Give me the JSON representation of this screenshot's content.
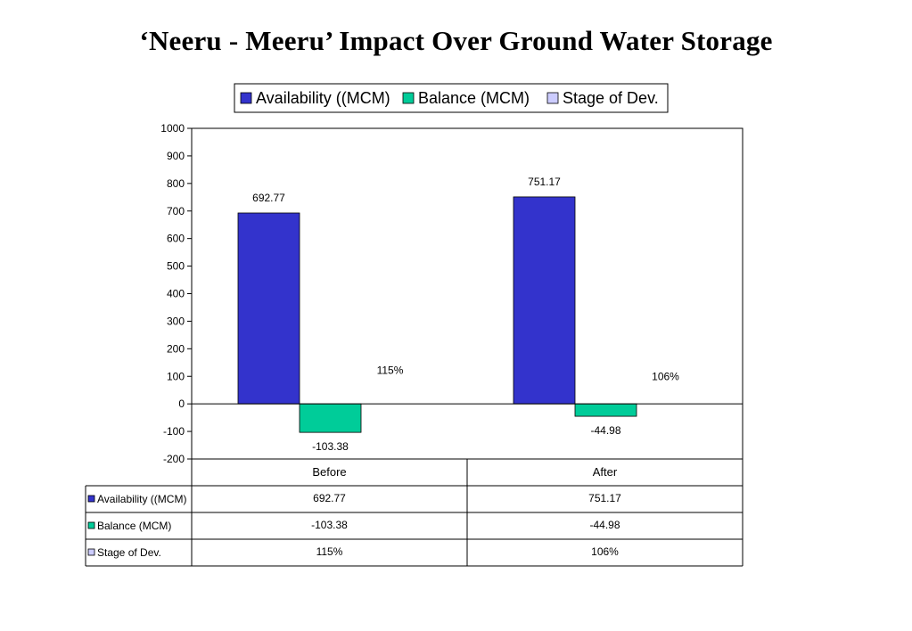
{
  "title": "‘Neeru - Meeru’ Impact Over Ground Water Storage",
  "colors": {
    "availability": "#3333cc",
    "balance": "#00cc99",
    "stage": "#ccccff"
  },
  "chart_data": {
    "type": "bar",
    "categories": [
      "Before",
      "After"
    ],
    "series": [
      {
        "name": "Availability ((MCM)",
        "values": [
          692.77,
          751.17
        ],
        "labels": [
          "692.77",
          "751.17"
        ]
      },
      {
        "name": "Balance (MCM)",
        "values": [
          -103.38,
          -44.98
        ],
        "labels": [
          "-103.38",
          "-44.98"
        ]
      },
      {
        "name": "Stage of Dev.",
        "values": [
          115,
          106
        ],
        "labels": [
          "115%",
          "106%"
        ]
      }
    ],
    "yticks": [
      1000,
      900,
      800,
      700,
      600,
      500,
      400,
      300,
      200,
      100,
      0,
      -100,
      -200
    ],
    "ylim": [
      -200,
      1000
    ],
    "legend": "top",
    "data_table": true,
    "grid": false
  }
}
